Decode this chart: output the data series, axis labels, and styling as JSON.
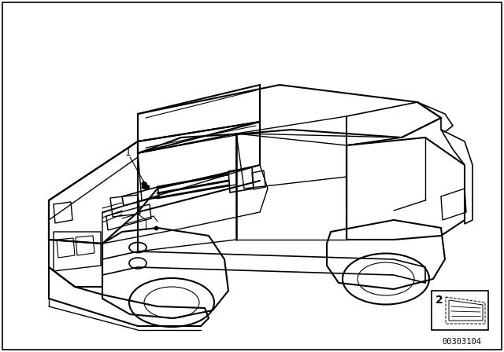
{
  "background_color": "#ffffff",
  "line_color": "#000000",
  "text_color": "#000000",
  "fig_width": 6.4,
  "fig_height": 4.48,
  "dpi": 100,
  "part_number": "00303104",
  "label_1": "1",
  "label_2": "2"
}
